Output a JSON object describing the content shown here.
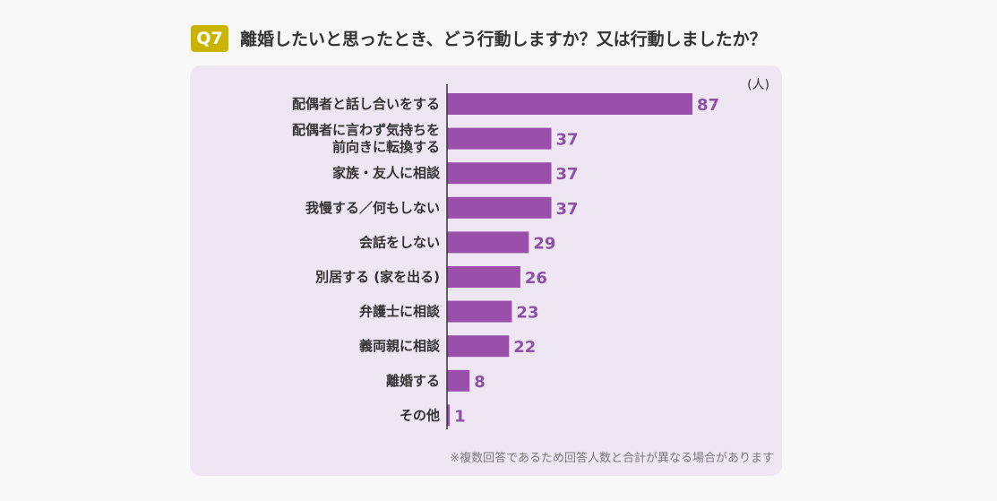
{
  "header": {
    "badge": "Q7",
    "question": "離婚したいと思ったとき、どう行動しますか？又は行動しましたか？"
  },
  "chart_data": {
    "type": "bar",
    "orientation": "horizontal",
    "unit_label": "(人)",
    "categories": [
      [
        "配偶者と話し合いをする"
      ],
      [
        "配偶者に言わず気持ちを",
        "前向きに転換する"
      ],
      [
        "家族・友人に相談"
      ],
      [
        "我慢する／何もしない"
      ],
      [
        "会話をしない"
      ],
      [
        "別居する (家を出る)"
      ],
      [
        "弁護士に相談"
      ],
      [
        "義両親に相談"
      ],
      [
        "離婚する"
      ],
      [
        "その他"
      ]
    ],
    "values": [
      87,
      37,
      37,
      37,
      29,
      26,
      23,
      22,
      8,
      1
    ],
    "xlim": [
      0,
      87
    ],
    "bar_color": "#9a50aa",
    "value_color": "#8e4fa6",
    "grid": false,
    "footnote": "※複数回答であるため回答人数と合計が異なる場合があります"
  },
  "colors": {
    "badge": "#c9b400",
    "panel": "#efe6f4",
    "page": "#f8f8f8"
  }
}
